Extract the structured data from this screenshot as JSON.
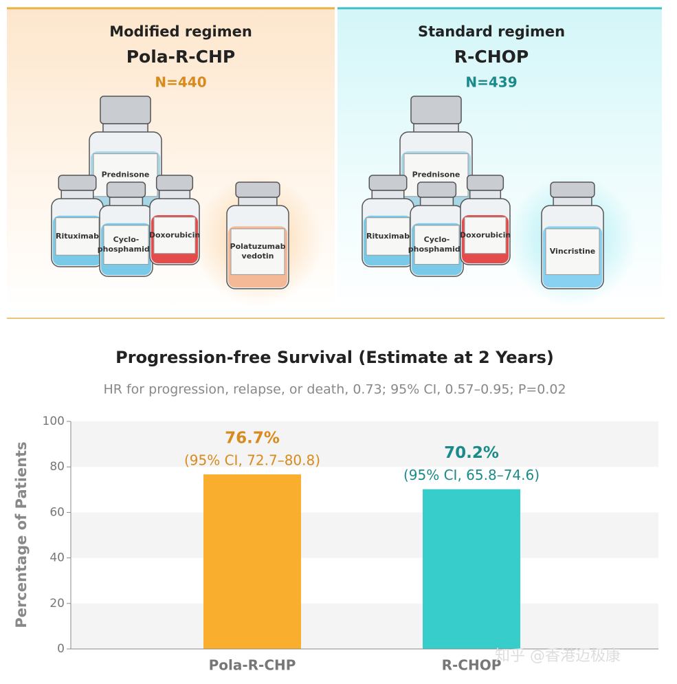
{
  "panels": [
    {
      "heading": "Modified regimen",
      "regimen": "Pola-R-CHP",
      "n": "N=440",
      "color": "#d98a1c",
      "drugs": [
        [
          "Prednisone"
        ],
        [
          "Rituximab"
        ],
        [
          "Cyclo-",
          "phosphamide"
        ],
        [
          "Doxorubicin"
        ],
        [
          "Polatuzumab",
          "vedotin"
        ]
      ]
    },
    {
      "heading": "Standard regimen",
      "regimen": "R-CHOP",
      "n": "N=439",
      "color": "#1a8a8a",
      "drugs": [
        [
          "Prednisone"
        ],
        [
          "Rituximab"
        ],
        [
          "Cyclo-",
          "phosphamide"
        ],
        [
          "Doxorubicin"
        ],
        [
          "Vincristine"
        ]
      ]
    }
  ],
  "chart_data": {
    "type": "bar",
    "title": "Progression-free Survival (Estimate at 2 Years)",
    "subtitle": "HR for progression, relapse, or death, 0.73; 95% CI, 0.57–0.95; P=0.02",
    "y_label": "Percentage of Patients",
    "categories": [
      "Pola-R-CHP",
      "R-CHOP"
    ],
    "values": [
      76.7,
      70.2
    ],
    "value_labels": [
      "76.7%",
      "70.2%"
    ],
    "annotations": [
      "(95% CI, 72.7–80.8)",
      "(95% CI, 65.8–74.6)"
    ],
    "colors": [
      "#f9ae2e",
      "#36cdcb"
    ],
    "label_colors": [
      "#d98a1c",
      "#1a8a8a"
    ],
    "ylim": [
      0,
      100
    ],
    "yticks": [
      0,
      20,
      40,
      60,
      80,
      100
    ],
    "grid": "bands"
  },
  "watermark": "知乎 @香港迈极康"
}
